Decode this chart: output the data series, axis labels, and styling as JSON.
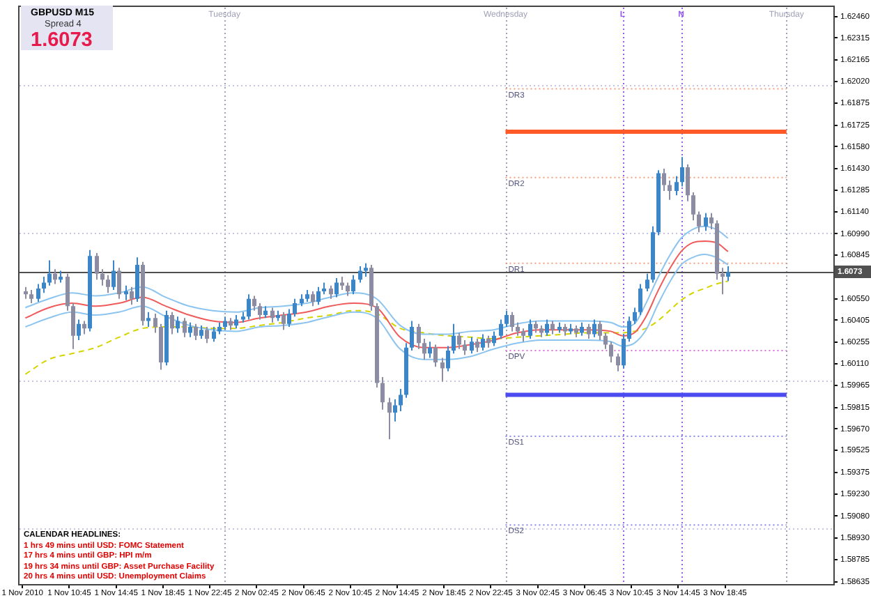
{
  "chart_data": {
    "type": "candlestick",
    "title": "GBPUSD M15",
    "annotations": [
      "Spread 4",
      "1.6073",
      "CALENDAR HEADLINES:",
      "1 hrs 49 mins until USD: FOMC Statement",
      "17 hrs 4 mins until GBP: HPI m/m",
      "19 hrs 34 mins until GBP: Asset Purchase Facility",
      "20 hrs 4 mins until USD: Unemployment Claims"
    ],
    "x": [
      "2010-11-01T07:00",
      "2010-11-01T07:30",
      "2010-11-01T08:00",
      "2010-11-01T08:30",
      "2010-11-01T09:00",
      "2010-11-01T09:30",
      "2010-11-01T10:00",
      "2010-11-01T10:30",
      "2010-11-01T11:00",
      "2010-11-01T11:30",
      "2010-11-01T12:00",
      "2010-11-01T12:30",
      "2010-11-01T13:00",
      "2010-11-01T13:30",
      "2010-11-01T14:00",
      "2010-11-01T14:30",
      "2010-11-01T15:00",
      "2010-11-01T15:30",
      "2010-11-01T16:00",
      "2010-11-01T16:30",
      "2010-11-01T17:00",
      "2010-11-01T17:30",
      "2010-11-01T18:00",
      "2010-11-01T18:30",
      "2010-11-01T19:00",
      "2010-11-01T19:30",
      "2010-11-01T20:00",
      "2010-11-01T20:30",
      "2010-11-01T21:00",
      "2010-11-01T21:30",
      "2010-11-01T22:00",
      "2010-11-01T22:30",
      "2010-11-01T23:00",
      "2010-11-01T23:30",
      "2010-11-02T00:00",
      "2010-11-02T00:30",
      "2010-11-02T01:00",
      "2010-11-02T01:30",
      "2010-11-02T02:00",
      "2010-11-02T02:30",
      "2010-11-02T03:00",
      "2010-11-02T03:30",
      "2010-11-02T04:00",
      "2010-11-02T04:30",
      "2010-11-02T05:00",
      "2010-11-02T05:30",
      "2010-11-02T06:00",
      "2010-11-02T06:30",
      "2010-11-02T07:00",
      "2010-11-02T07:30",
      "2010-11-02T08:00",
      "2010-11-02T08:30",
      "2010-11-02T09:00",
      "2010-11-02T09:30",
      "2010-11-02T10:00",
      "2010-11-02T10:30",
      "2010-11-02T11:00",
      "2010-11-02T11:30",
      "2010-11-02T12:00",
      "2010-11-02T12:30",
      "2010-11-02T13:00",
      "2010-11-02T13:30",
      "2010-11-02T14:00",
      "2010-11-02T14:30",
      "2010-11-02T15:00",
      "2010-11-02T15:30",
      "2010-11-02T16:00",
      "2010-11-02T16:30",
      "2010-11-02T17:00",
      "2010-11-02T17:30",
      "2010-11-02T18:00",
      "2010-11-02T18:30",
      "2010-11-02T19:00",
      "2010-11-02T19:30",
      "2010-11-02T20:00",
      "2010-11-02T20:30",
      "2010-11-02T21:00",
      "2010-11-02T21:30",
      "2010-11-02T22:00",
      "2010-11-02T22:30",
      "2010-11-02T23:00",
      "2010-11-02T23:30",
      "2010-11-03T00:00",
      "2010-11-03T00:30",
      "2010-11-03T01:00",
      "2010-11-03T01:30",
      "2010-11-03T02:00",
      "2010-11-03T02:30",
      "2010-11-03T03:00",
      "2010-11-03T03:30",
      "2010-11-03T04:00",
      "2010-11-03T04:30",
      "2010-11-03T05:00",
      "2010-11-03T05:30",
      "2010-11-03T06:00",
      "2010-11-03T06:30",
      "2010-11-03T07:00",
      "2010-11-03T07:30",
      "2010-11-03T08:00",
      "2010-11-03T08:30",
      "2010-11-03T09:00",
      "2010-11-03T09:30",
      "2010-11-03T10:00",
      "2010-11-03T10:30",
      "2010-11-03T11:00",
      "2010-11-03T11:30",
      "2010-11-03T12:00",
      "2010-11-03T12:30",
      "2010-11-03T13:00",
      "2010-11-03T13:30",
      "2010-11-03T14:00",
      "2010-11-03T14:30",
      "2010-11-03T15:00",
      "2010-11-03T15:30",
      "2010-11-03T16:00",
      "2010-11-03T16:30",
      "2010-11-03T17:00",
      "2010-11-03T17:30",
      "2010-11-03T18:00",
      "2010-11-03T18:30",
      "2010-11-03T19:00"
    ],
    "ohlc": [
      [
        1.606,
        1.6063,
        1.6055,
        1.6058
      ],
      [
        1.6058,
        1.6061,
        1.6052,
        1.6055
      ],
      [
        1.6055,
        1.6065,
        1.6053,
        1.6062
      ],
      [
        1.6062,
        1.607,
        1.6059,
        1.6066
      ],
      [
        1.6066,
        1.6081,
        1.6064,
        1.6072
      ],
      [
        1.6072,
        1.6075,
        1.6065,
        1.6068
      ],
      [
        1.6068,
        1.6074,
        1.6066,
        1.607
      ],
      [
        1.607,
        1.6072,
        1.6047,
        1.605
      ],
      [
        1.605,
        1.6052,
        1.6021,
        1.603
      ],
      [
        1.603,
        1.6041,
        1.6027,
        1.6038
      ],
      [
        1.6038,
        1.604,
        1.6031,
        1.6035
      ],
      [
        1.6035,
        1.6088,
        1.6033,
        1.6084
      ],
      [
        1.6084,
        1.6086,
        1.6068,
        1.6072
      ],
      [
        1.6072,
        1.6075,
        1.6064,
        1.6068
      ],
      [
        1.6068,
        1.6071,
        1.6059,
        1.6063
      ],
      [
        1.6063,
        1.6081,
        1.6061,
        1.6074
      ],
      [
        1.6074,
        1.6076,
        1.6055,
        1.6058
      ],
      [
        1.6058,
        1.6064,
        1.6054,
        1.606
      ],
      [
        1.606,
        1.6063,
        1.6051,
        1.6055
      ],
      [
        1.6055,
        1.6083,
        1.6053,
        1.6078
      ],
      [
        1.6078,
        1.608,
        1.6037,
        1.604
      ],
      [
        1.604,
        1.6046,
        1.6036,
        1.6042
      ],
      [
        1.6042,
        1.6045,
        1.6032,
        1.6036
      ],
      [
        1.6036,
        1.6038,
        1.6007,
        1.6012
      ],
      [
        1.6012,
        1.6047,
        1.601,
        1.6044
      ],
      [
        1.6044,
        1.6046,
        1.6031,
        1.6035
      ],
      [
        1.6035,
        1.6043,
        1.6032,
        1.604
      ],
      [
        1.604,
        1.6042,
        1.6029,
        1.6032
      ],
      [
        1.6032,
        1.6039,
        1.6029,
        1.6036
      ],
      [
        1.6036,
        1.6038,
        1.6027,
        1.603
      ],
      [
        1.603,
        1.6037,
        1.6028,
        1.6034
      ],
      [
        1.6034,
        1.6036,
        1.6025,
        1.6028
      ],
      [
        1.6028,
        1.6036,
        1.6026,
        1.6033
      ],
      [
        1.6033,
        1.6039,
        1.6031,
        1.6036
      ],
      [
        1.6036,
        1.6043,
        1.6034,
        1.604
      ],
      [
        1.604,
        1.6042,
        1.6034,
        1.6037
      ],
      [
        1.6037,
        1.6044,
        1.6035,
        1.6041
      ],
      [
        1.6041,
        1.6046,
        1.6039,
        1.6043
      ],
      [
        1.6043,
        1.6058,
        1.6041,
        1.6055
      ],
      [
        1.6055,
        1.6057,
        1.6047,
        1.605
      ],
      [
        1.605,
        1.6052,
        1.6041,
        1.6044
      ],
      [
        1.6044,
        1.605,
        1.6042,
        1.6047
      ],
      [
        1.6047,
        1.6049,
        1.6039,
        1.6042
      ],
      [
        1.6042,
        1.6047,
        1.604,
        1.6044
      ],
      [
        1.6044,
        1.6046,
        1.6034,
        1.6038
      ],
      [
        1.6038,
        1.6048,
        1.6036,
        1.6045
      ],
      [
        1.6045,
        1.6055,
        1.6043,
        1.6052
      ],
      [
        1.6052,
        1.6058,
        1.605,
        1.6055
      ],
      [
        1.6055,
        1.6061,
        1.6053,
        1.6058
      ],
      [
        1.6058,
        1.606,
        1.605,
        1.6053
      ],
      [
        1.6053,
        1.6063,
        1.6051,
        1.606
      ],
      [
        1.606,
        1.6066,
        1.6058,
        1.6062
      ],
      [
        1.6062,
        1.6064,
        1.6055,
        1.6058
      ],
      [
        1.6058,
        1.6069,
        1.6056,
        1.6066
      ],
      [
        1.6066,
        1.607,
        1.6061,
        1.6064
      ],
      [
        1.6064,
        1.6066,
        1.6057,
        1.606
      ],
      [
        1.606,
        1.6071,
        1.6058,
        1.6068
      ],
      [
        1.6068,
        1.6077,
        1.6066,
        1.6074
      ],
      [
        1.6074,
        1.6079,
        1.607,
        1.6076
      ],
      [
        1.6076,
        1.6078,
        1.6047,
        1.605
      ],
      [
        1.605,
        1.6052,
        1.5995,
        1.5998
      ],
      [
        1.5998,
        1.6002,
        1.598,
        1.5985
      ],
      [
        1.5985,
        1.5988,
        1.596,
        1.5978
      ],
      [
        1.5978,
        1.5987,
        1.5972,
        1.5983
      ],
      [
        1.5983,
        1.5994,
        1.5979,
        1.599
      ],
      [
        1.599,
        1.6025,
        1.5988,
        1.6022
      ],
      [
        1.6022,
        1.604,
        1.602,
        1.6036
      ],
      [
        1.6036,
        1.6038,
        1.6021,
        1.6025
      ],
      [
        1.6025,
        1.6028,
        1.6014,
        1.6018
      ],
      [
        1.6018,
        1.6026,
        1.6015,
        1.6022
      ],
      [
        1.6022,
        1.6024,
        1.6009,
        1.6012
      ],
      [
        1.6012,
        1.6015,
        1.5999,
        1.6008
      ],
      [
        1.6008,
        1.6023,
        1.6006,
        1.602
      ],
      [
        1.602,
        1.6038,
        1.6018,
        1.603
      ],
      [
        1.603,
        1.6032,
        1.6021,
        1.6024
      ],
      [
        1.6024,
        1.6027,
        1.6017,
        1.602
      ],
      [
        1.602,
        1.6029,
        1.6018,
        1.6026
      ],
      [
        1.6026,
        1.6028,
        1.6019,
        1.6022
      ],
      [
        1.6022,
        1.6031,
        1.602,
        1.6028
      ],
      [
        1.6028,
        1.603,
        1.6022,
        1.6025
      ],
      [
        1.6025,
        1.6033,
        1.6023,
        1.603
      ],
      [
        1.603,
        1.6041,
        1.6028,
        1.6038
      ],
      [
        1.6038,
        1.6047,
        1.6036,
        1.6044
      ],
      [
        1.6044,
        1.6046,
        1.6033,
        1.6036
      ],
      [
        1.6036,
        1.6039,
        1.603,
        1.6033
      ],
      [
        1.6033,
        1.6035,
        1.6026,
        1.603
      ],
      [
        1.603,
        1.6041,
        1.6028,
        1.6038
      ],
      [
        1.6038,
        1.604,
        1.6032,
        1.6035
      ],
      [
        1.6035,
        1.6037,
        1.6029,
        1.6032
      ],
      [
        1.6032,
        1.6041,
        1.603,
        1.6038
      ],
      [
        1.6038,
        1.604,
        1.6031,
        1.6034
      ],
      [
        1.6034,
        1.6039,
        1.6032,
        1.6036
      ],
      [
        1.6036,
        1.6038,
        1.603,
        1.6033
      ],
      [
        1.6033,
        1.6038,
        1.6031,
        1.6035
      ],
      [
        1.6035,
        1.6037,
        1.6029,
        1.6032
      ],
      [
        1.6032,
        1.6039,
        1.603,
        1.6036
      ],
      [
        1.6036,
        1.6038,
        1.6028,
        1.6031
      ],
      [
        1.6031,
        1.6041,
        1.6029,
        1.6038
      ],
      [
        1.6038,
        1.604,
        1.6027,
        1.603
      ],
      [
        1.603,
        1.6032,
        1.6021,
        1.6024
      ],
      [
        1.6024,
        1.6026,
        1.6012,
        1.6016
      ],
      [
        1.6016,
        1.6018,
        1.6006,
        1.601
      ],
      [
        1.601,
        1.6031,
        1.6008,
        1.6028
      ],
      [
        1.6028,
        1.6043,
        1.6026,
        1.604
      ],
      [
        1.604,
        1.6049,
        1.6038,
        1.6046
      ],
      [
        1.6046,
        1.6065,
        1.6044,
        1.6062
      ],
      [
        1.6062,
        1.6072,
        1.606,
        1.6068
      ],
      [
        1.6068,
        1.6104,
        1.6066,
        1.61
      ],
      [
        1.61,
        1.6142,
        1.6098,
        1.614
      ],
      [
        1.614,
        1.6143,
        1.6128,
        1.6132
      ],
      [
        1.6132,
        1.6135,
        1.6122,
        1.6128
      ],
      [
        1.6128,
        1.6138,
        1.6125,
        1.6134
      ],
      [
        1.6134,
        1.6151,
        1.6131,
        1.6144
      ],
      [
        1.6144,
        1.6146,
        1.6121,
        1.6125
      ],
      [
        1.6125,
        1.6127,
        1.6108,
        1.6112
      ],
      [
        1.6112,
        1.6114,
        1.61,
        1.6104
      ],
      [
        1.6104,
        1.6113,
        1.6101,
        1.611
      ],
      [
        1.611,
        1.6113,
        1.6102,
        1.6106
      ],
      [
        1.6106,
        1.6108,
        1.6068,
        1.6072
      ],
      [
        1.6072,
        1.6076,
        1.6058,
        1.607
      ],
      [
        1.607,
        1.6077,
        1.6067,
        1.6073
      ]
    ],
    "colors": [
      "#8c8ca2",
      "#8c8ca2",
      "#3c86c8",
      "#3c86c8",
      "#3c86c8",
      "#8c8ca2",
      "#3c86c8",
      "#8c8ca2",
      "#8c8ca2",
      "#3c86c8",
      "#8c8ca2",
      "#3c86c8",
      "#8c8ca2",
      "#8c8ca2",
      "#8c8ca2",
      "#3c86c8",
      "#8c8ca2",
      "#3c86c8",
      "#8c8ca2",
      "#3c86c8",
      "#8c8ca2",
      "#3c86c8",
      "#8c8ca2",
      "#8c8ca2",
      "#3c86c8",
      "#8c8ca2",
      "#3c86c8",
      "#8c8ca2",
      "#3c86c8",
      "#8c8ca2",
      "#3c86c8",
      "#8c8ca2",
      "#3c86c8",
      "#3c86c8",
      "#3c86c8",
      "#8c8ca2",
      "#3c86c8",
      "#3c86c8",
      "#3c86c8",
      "#8c8ca2",
      "#8c8ca2",
      "#3c86c8",
      "#8c8ca2",
      "#3c86c8",
      "#8c8ca2",
      "#3c86c8",
      "#3c86c8",
      "#3c86c8",
      "#3c86c8",
      "#8c8ca2",
      "#3c86c8",
      "#3c86c8",
      "#8c8ca2",
      "#3c86c8",
      "#8c8ca2",
      "#8c8ca2",
      "#3c86c8",
      "#3c86c8",
      "#3c86c8",
      "#8c8ca2",
      "#8c8ca2",
      "#8c8ca2",
      "#8c8ca2",
      "#3c86c8",
      "#3c86c8",
      "#3c86c8",
      "#3c86c8",
      "#8c8ca2",
      "#8c8ca2",
      "#3c86c8",
      "#8c8ca2",
      "#8c8ca2",
      "#3c86c8",
      "#3c86c8",
      "#8c8ca2",
      "#8c8ca2",
      "#3c86c8",
      "#8c8ca2",
      "#3c86c8",
      "#8c8ca2",
      "#3c86c8",
      "#3c86c8",
      "#3c86c8",
      "#8c8ca2",
      "#8c8ca2",
      "#8c8ca2",
      "#3c86c8",
      "#8c8ca2",
      "#8c8ca2",
      "#3c86c8",
      "#8c8ca2",
      "#3c86c8",
      "#8c8ca2",
      "#3c86c8",
      "#8c8ca2",
      "#3c86c8",
      "#8c8ca2",
      "#3c86c8",
      "#8c8ca2",
      "#8c8ca2",
      "#8c8ca2",
      "#8c8ca2",
      "#3c86c8",
      "#3c86c8",
      "#3c86c8",
      "#3c86c8",
      "#3c86c8",
      "#3c86c8",
      "#3c86c8",
      "#8c8ca2",
      "#8c8ca2",
      "#3c86c8",
      "#3c86c8",
      "#8c8ca2",
      "#8c8ca2",
      "#8c8ca2",
      "#3c86c8",
      "#8c8ca2",
      "#8c8ca2",
      "#8c8ca2",
      "#3c86c8"
    ],
    "series": [
      {
        "type": "line",
        "color": "#8cc4f0",
        "x": [
          "2010-11-01T07:00",
          "2010-11-01T09:00",
          "2010-11-01T11:00",
          "2010-11-01T13:00",
          "2010-11-01T15:00",
          "2010-11-01T17:00",
          "2010-11-01T19:00",
          "2010-11-01T21:00",
          "2010-11-01T23:00",
          "2010-11-02T01:00",
          "2010-11-02T03:00",
          "2010-11-02T05:00",
          "2010-11-02T07:00",
          "2010-11-02T09:00",
          "2010-11-02T11:00",
          "2010-11-02T13:00",
          "2010-11-02T15:00",
          "2010-11-02T17:00",
          "2010-11-02T19:00",
          "2010-11-02T21:00",
          "2010-11-02T23:00",
          "2010-11-03T01:00",
          "2010-11-03T03:00",
          "2010-11-03T05:00",
          "2010-11-03T07:00",
          "2010-11-03T09:00",
          "2010-11-03T10:00",
          "2010-11-03T11:00",
          "2010-11-03T12:00",
          "2010-11-03T13:00",
          "2010-11-03T14:00",
          "2010-11-03T15:00",
          "2010-11-03T16:00",
          "2010-11-03T17:00",
          "2010-11-03T18:00",
          "2010-11-03T19:00"
        ],
        "values": [
          1.6049,
          1.6055,
          1.6059,
          1.6057,
          1.6059,
          1.6063,
          1.6056,
          1.605,
          1.6047,
          1.6046,
          1.6049,
          1.605,
          1.6052,
          1.6056,
          1.6059,
          1.6055,
          1.6037,
          1.6031,
          1.6031,
          1.6033,
          1.6034,
          1.6038,
          1.604,
          1.604,
          1.604,
          1.6039,
          1.6036,
          1.6038,
          1.6052,
          1.6069,
          1.6084,
          1.6096,
          1.6102,
          1.6104,
          1.6102,
          1.6096
        ]
      },
      {
        "type": "line",
        "color": "#f05a5a",
        "x": [
          "2010-11-01T07:00",
          "2010-11-01T09:00",
          "2010-11-01T11:00",
          "2010-11-01T13:00",
          "2010-11-01T15:00",
          "2010-11-01T17:00",
          "2010-11-01T19:00",
          "2010-11-01T21:00",
          "2010-11-01T23:00",
          "2010-11-02T01:00",
          "2010-11-02T03:00",
          "2010-11-02T05:00",
          "2010-11-02T07:00",
          "2010-11-02T09:00",
          "2010-11-02T11:00",
          "2010-11-02T13:00",
          "2010-11-02T15:00",
          "2010-11-02T17:00",
          "2010-11-02T19:00",
          "2010-11-02T21:00",
          "2010-11-02T23:00",
          "2010-11-03T01:00",
          "2010-11-03T03:00",
          "2010-11-03T05:00",
          "2010-11-03T07:00",
          "2010-11-03T09:00",
          "2010-11-03T10:00",
          "2010-11-03T11:00",
          "2010-11-03T12:00",
          "2010-11-03T13:00",
          "2010-11-03T14:00",
          "2010-11-03T15:00",
          "2010-11-03T16:00",
          "2010-11-03T17:00",
          "2010-11-03T18:00",
          "2010-11-03T19:00"
        ],
        "values": [
          1.6042,
          1.6049,
          1.6052,
          1.605,
          1.6052,
          1.6056,
          1.605,
          1.6044,
          1.604,
          1.6039,
          1.6042,
          1.6044,
          1.6046,
          1.605,
          1.6052,
          1.6049,
          1.6029,
          1.6022,
          1.6022,
          1.6024,
          1.6027,
          1.6032,
          1.6034,
          1.6034,
          1.6034,
          1.6033,
          1.603,
          1.6032,
          1.6043,
          1.606,
          1.6075,
          1.6087,
          1.6093,
          1.6094,
          1.6093,
          1.6087
        ]
      },
      {
        "type": "line",
        "color": "#8cc4f0",
        "x": [
          "2010-11-01T07:00",
          "2010-11-01T09:00",
          "2010-11-01T11:00",
          "2010-11-01T13:00",
          "2010-11-01T15:00",
          "2010-11-01T17:00",
          "2010-11-01T19:00",
          "2010-11-01T21:00",
          "2010-11-01T23:00",
          "2010-11-02T01:00",
          "2010-11-02T03:00",
          "2010-11-02T05:00",
          "2010-11-02T07:00",
          "2010-11-02T09:00",
          "2010-11-02T11:00",
          "2010-11-02T13:00",
          "2010-11-02T15:00",
          "2010-11-02T17:00",
          "2010-11-02T19:00",
          "2010-11-02T21:00",
          "2010-11-02T23:00",
          "2010-11-03T01:00",
          "2010-11-03T03:00",
          "2010-11-03T05:00",
          "2010-11-03T07:00",
          "2010-11-03T09:00",
          "2010-11-03T10:00",
          "2010-11-03T11:00",
          "2010-11-03T12:00",
          "2010-11-03T13:00",
          "2010-11-03T14:00",
          "2010-11-03T15:00",
          "2010-11-03T16:00",
          "2010-11-03T17:00",
          "2010-11-03T18:00",
          "2010-11-03T19:00"
        ],
        "values": [
          1.6036,
          1.6042,
          1.6046,
          1.6044,
          1.6046,
          1.605,
          1.6043,
          1.6037,
          1.6034,
          1.6033,
          1.6036,
          1.6037,
          1.6039,
          1.6043,
          1.6046,
          1.6042,
          1.6021,
          1.6014,
          1.6014,
          1.6016,
          1.6021,
          1.6025,
          1.6027,
          1.6027,
          1.6027,
          1.6026,
          1.6023,
          1.6025,
          1.6034,
          1.6051,
          1.6066,
          1.6078,
          1.6083,
          1.6085,
          1.6083,
          1.6078
        ]
      },
      {
        "type": "line",
        "color": "#d4d400",
        "line_style": "dashed",
        "x": [
          "2010-11-01T07:00",
          "2010-11-01T09:00",
          "2010-11-01T11:00",
          "2010-11-01T13:00",
          "2010-11-01T15:00",
          "2010-11-01T17:00",
          "2010-11-01T19:00",
          "2010-11-01T21:00",
          "2010-11-01T23:00",
          "2010-11-02T01:00",
          "2010-11-02T03:00",
          "2010-11-02T05:00",
          "2010-11-02T07:00",
          "2010-11-02T09:00",
          "2010-11-02T11:00",
          "2010-11-02T13:00",
          "2010-11-02T15:00",
          "2010-11-02T17:00",
          "2010-11-02T19:00",
          "2010-11-02T21:00",
          "2010-11-02T23:00",
          "2010-11-03T01:00",
          "2010-11-03T03:00",
          "2010-11-03T05:00",
          "2010-11-03T07:00",
          "2010-11-03T09:00",
          "2010-11-03T10:00",
          "2010-11-03T11:00",
          "2010-11-03T12:00",
          "2010-11-03T13:00",
          "2010-11-03T14:00",
          "2010-11-03T15:00",
          "2010-11-03T16:00",
          "2010-11-03T17:00",
          "2010-11-03T18:00",
          "2010-11-03T19:00"
        ],
        "values": [
          1.6004,
          1.6014,
          1.6018,
          1.6022,
          1.6029,
          1.6035,
          1.6036,
          1.6036,
          1.6035,
          1.6035,
          1.6037,
          1.6039,
          1.6042,
          1.6044,
          1.6047,
          1.6045,
          1.6035,
          1.6032,
          1.603,
          1.6029,
          1.6028,
          1.6029,
          1.603,
          1.6031,
          1.6032,
          1.6032,
          1.6032,
          1.6033,
          1.6035,
          1.604,
          1.6047,
          1.6054,
          1.6059,
          1.6062,
          1.6065,
          1.6067
        ]
      },
      {
        "type": "line",
        "name": "DR3",
        "color": "#f4a080",
        "line_style": "dotted",
        "x": [
          "2010-11-03T00:00",
          "2010-11-04T00:00"
        ],
        "values": [
          1.6197,
          1.6197
        ]
      },
      {
        "type": "line",
        "name": "DR2",
        "color": "#f4a080",
        "line_style": "dotted",
        "x": [
          "2010-11-03T00:00",
          "2010-11-04T00:00"
        ],
        "values": [
          1.6137,
          1.6137
        ]
      },
      {
        "type": "line",
        "name": "DR1",
        "color": "#f4a080",
        "line_style": "dotted",
        "x": [
          "2010-11-03T00:00",
          "2010-11-04T00:00"
        ],
        "values": [
          1.6079,
          1.6079
        ]
      },
      {
        "type": "line",
        "name": "DPV",
        "color": "#e070e0",
        "line_style": "dotted",
        "x": [
          "2010-11-03T00:00",
          "2010-11-04T00:00"
        ],
        "values": [
          1.602,
          1.602
        ]
      },
      {
        "type": "line",
        "name": "DS1",
        "color": "#8888ee",
        "line_style": "dotted",
        "x": [
          "2010-11-03T00:00",
          "2010-11-04T00:00"
        ],
        "values": [
          1.5962,
          1.5962
        ]
      },
      {
        "type": "line",
        "name": "DS2",
        "color": "#8888ee",
        "line_style": "dotted",
        "x": [
          "2010-11-03T00:00",
          "2010-11-04T00:00"
        ],
        "values": [
          1.5902,
          1.5902
        ]
      },
      {
        "type": "line",
        "color": "#ff5a28",
        "x": [
          "2010-11-03T00:00",
          "2010-11-04T00:00"
        ],
        "values": [
          1.6168,
          1.6168
        ]
      },
      {
        "type": "line",
        "color": "#4b4bf0",
        "x": [
          "2010-11-03T00:00",
          "2010-11-04T00:00"
        ],
        "values": [
          1.599,
          1.599
        ]
      }
    ],
    "xlim": [
      "2010-11-01T06:30",
      "2010-11-04T04:00"
    ],
    "xticks": [
      {
        "value": "2010-11-01T06:45",
        "label": "1 Nov 2010"
      },
      {
        "value": "2010-11-01T10:45",
        "label": "1 Nov 10:45"
      },
      {
        "value": "2010-11-01T14:45",
        "label": "1 Nov 14:45"
      },
      {
        "value": "2010-11-01T18:45",
        "label": "1 Nov 18:45"
      },
      {
        "value": "2010-11-01T22:45",
        "label": "1 Nov 22:45"
      },
      {
        "value": "2010-11-02T02:45",
        "label": "2 Nov 02:45"
      },
      {
        "value": "2010-11-02T06:45",
        "label": "2 Nov 06:45"
      },
      {
        "value": "2010-11-02T10:45",
        "label": "2 Nov 10:45"
      },
      {
        "value": "2010-11-02T14:45",
        "label": "2 Nov 14:45"
      },
      {
        "value": "2010-11-02T18:45",
        "label": "2 Nov 18:45"
      },
      {
        "value": "2010-11-02T22:45",
        "label": "2 Nov 22:45"
      },
      {
        "value": "2010-11-03T02:45",
        "label": "3 Nov 02:45"
      },
      {
        "value": "2010-11-03T06:45",
        "label": "3 Nov 06:45"
      },
      {
        "value": "2010-11-03T10:45",
        "label": "3 Nov 10:45"
      },
      {
        "value": "2010-11-03T14:45",
        "label": "3 Nov 14:45"
      },
      {
        "value": "2010-11-03T18:45",
        "label": "3 Nov 18:45"
      }
    ],
    "ylim": [
      1.5862,
      1.6252
    ],
    "yticks": [
      {
        "value": 1.6246,
        "label": "1.62460"
      },
      1.62315,
      1.62165,
      {
        "value": 1.6202,
        "label": "1.62020"
      },
      1.61875,
      1.61725,
      {
        "value": 1.6158,
        "label": "1.61580"
      },
      {
        "value": 1.6143,
        "label": "1.61430"
      },
      1.61285,
      {
        "value": 1.6114,
        "label": "1.61140"
      },
      {
        "value": 1.6099,
        "label": "1.60990"
      },
      1.60845,
      {
        "value": 1.6055,
        "label": "1.60550"
      },
      1.60405,
      1.60255,
      {
        "value": 1.6011,
        "label": "1.60110"
      },
      1.59965,
      1.59815,
      {
        "value": 1.5967,
        "label": "1.59670"
      },
      1.59525,
      1.59375,
      {
        "value": 1.5923,
        "label": "1.59230"
      },
      {
        "value": 1.5908,
        "label": "1.59080"
      },
      {
        "value": 1.5893,
        "label": "1.58930"
      },
      1.58785,
      1.58635
    ],
    "ref_lines": [
      {
        "axis": "x",
        "value": "2010-11-02T00:00",
        "label": "Tuesday",
        "color": "#a0a0b8",
        "line_style": "dotted"
      },
      {
        "axis": "x",
        "value": "2010-11-03T00:00",
        "label": "Wednesday",
        "color": "#a0a0b8",
        "line_style": "dotted"
      },
      {
        "axis": "x",
        "value": "2010-11-03T10:00",
        "label": "L",
        "color": "#9a5cf0",
        "line_style": "dotted"
      },
      {
        "axis": "x",
        "value": "2010-11-03T15:00",
        "label": "N",
        "color": "#9a5cf0",
        "line_style": "dotted"
      },
      {
        "axis": "x",
        "value": "2010-11-04T00:00",
        "label": "Thursday",
        "color": "#a0a0b8",
        "line_style": "dotted"
      },
      {
        "axis": "y",
        "value": 1.62,
        "color": "#c4c4e4",
        "line_style": "dotted"
      },
      {
        "axis": "y",
        "value": 1.61,
        "color": "#c4c4e4",
        "line_style": "dotted"
      },
      {
        "axis": "y",
        "value": 1.6,
        "color": "#c4c4e4",
        "line_style": "dotted"
      },
      {
        "axis": "y",
        "value": 1.59,
        "color": "#c4c4e4",
        "line_style": "dotted"
      },
      {
        "axis": "y",
        "value": 1.6073,
        "label": "1.6073",
        "color": "#505050",
        "line_style": "solid"
      }
    ]
  }
}
